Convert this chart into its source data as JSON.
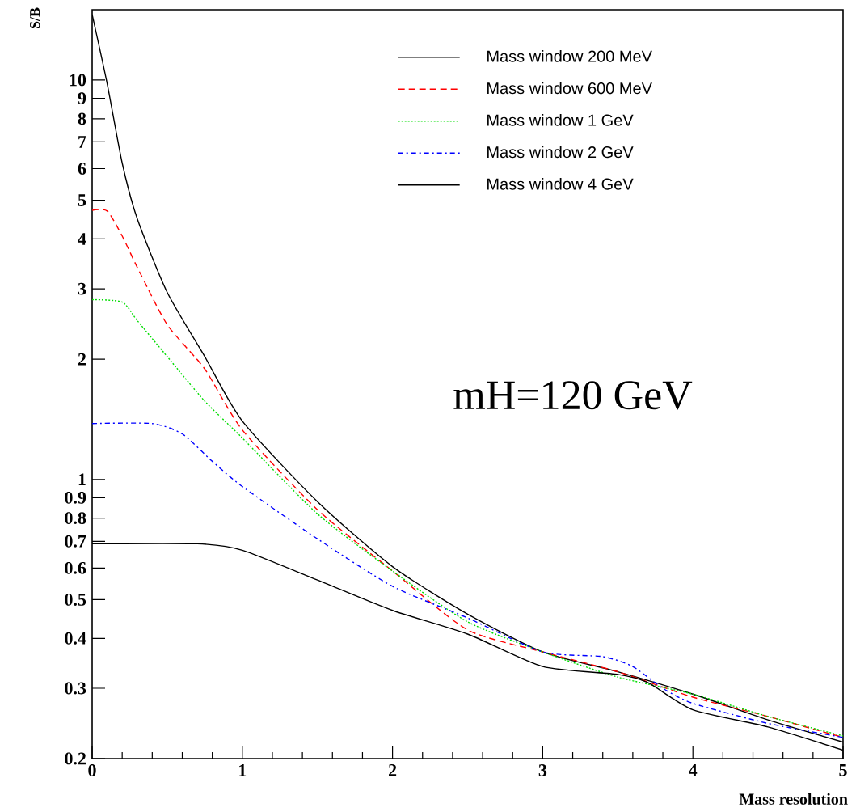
{
  "chart_data": {
    "type": "line",
    "xlabel": "Mass resolution",
    "ylabel": "S/B",
    "annotations": [
      "mH=120 GeV"
    ],
    "xlim": [
      0,
      5
    ],
    "xticks": [
      0,
      1,
      2,
      3,
      4,
      5
    ],
    "ylim": [
      0.2,
      15
    ],
    "log": "y",
    "yticks": [
      0.2,
      0.3,
      0.4,
      0.5,
      0.6,
      0.7,
      0.8,
      0.9,
      1,
      2,
      3,
      4,
      5,
      6,
      7,
      8,
      9,
      10
    ],
    "grid": false,
    "legend": "top right",
    "marker": "none",
    "series": [
      {
        "name": "Mass window 200 MeV",
        "color": "#000000",
        "line_style": "solid",
        "x": [
          0,
          0.1,
          0.2,
          0.3,
          0.5,
          0.75,
          1,
          1.5,
          2,
          2.5,
          3,
          3.5,
          4,
          4.5,
          5
        ],
        "values": [
          14.6,
          9.8,
          6.2,
          4.5,
          2.94,
          2.03,
          1.4,
          0.88,
          0.605,
          0.46,
          0.37,
          0.33,
          0.29,
          0.25,
          0.22
        ]
      },
      {
        "name": "Mass window 600 MeV",
        "color": "#ff0000",
        "line_style": "dashed",
        "x": [
          0,
          0.1,
          0.2,
          0.3,
          0.5,
          0.75,
          1,
          1.5,
          2,
          2.5,
          3,
          3.5,
          4,
          4.5,
          5
        ],
        "values": [
          4.72,
          4.7,
          4.07,
          3.4,
          2.44,
          1.89,
          1.33,
          0.84,
          0.59,
          0.42,
          0.37,
          0.33,
          0.285,
          0.255,
          0.226
        ]
      },
      {
        "name": "Mass window 1 GeV",
        "color": "#00dd00",
        "line_style": "dotted",
        "x": [
          0,
          0.2,
          0.3,
          0.5,
          0.75,
          1,
          1.5,
          2,
          2.5,
          3,
          3.5,
          4,
          4.5,
          5
        ],
        "values": [
          2.82,
          2.78,
          2.5,
          2.03,
          1.57,
          1.27,
          0.82,
          0.59,
          0.44,
          0.37,
          0.32,
          0.29,
          0.255,
          0.228
        ]
      },
      {
        "name": "Mass window 2 GeV",
        "color": "#0000ff",
        "line_style": "dashdot",
        "x": [
          0,
          0.4,
          0.6,
          0.8,
          1,
          1.5,
          2,
          2.5,
          3,
          3.4,
          3.6,
          3.8,
          4,
          4.5,
          5
        ],
        "values": [
          1.38,
          1.38,
          1.3,
          1.11,
          0.96,
          0.71,
          0.54,
          0.45,
          0.37,
          0.36,
          0.34,
          0.3,
          0.275,
          0.245,
          0.226
        ]
      },
      {
        "name": "Mass window 4 GeV",
        "color": "#000000",
        "line_style": "solid",
        "x": [
          0,
          0.7,
          1,
          1.5,
          2,
          2.5,
          3,
          3.5,
          3.7,
          4,
          4.5,
          5
        ],
        "values": [
          0.69,
          0.69,
          0.665,
          0.56,
          0.47,
          0.41,
          0.34,
          0.325,
          0.31,
          0.265,
          0.24,
          0.21
        ]
      }
    ]
  }
}
